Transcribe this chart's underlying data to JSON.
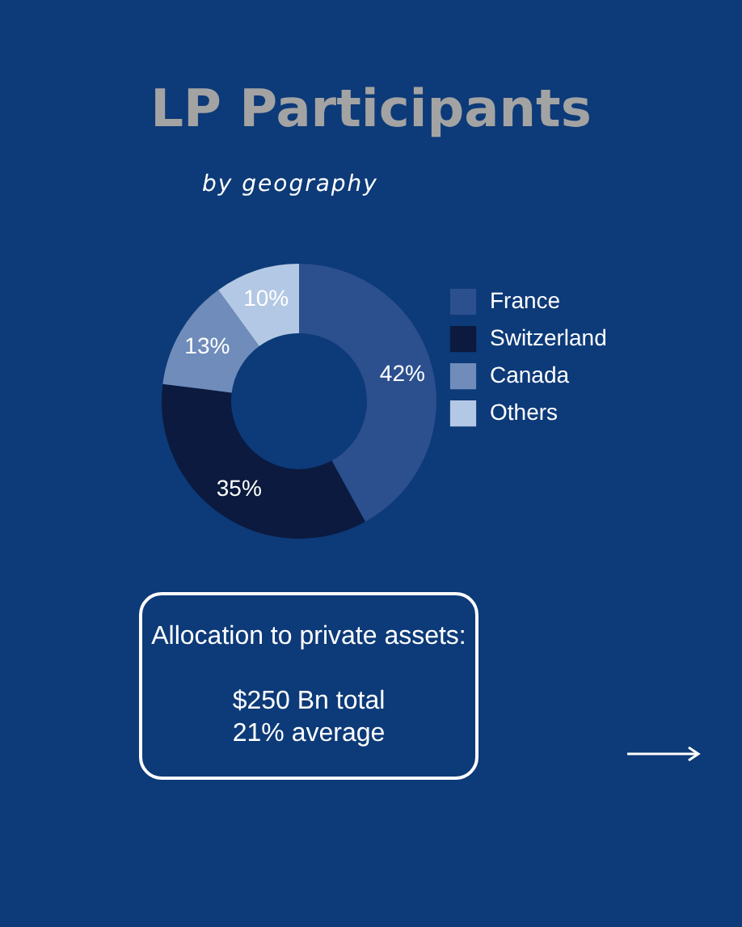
{
  "chart_data": {
    "type": "donut",
    "title": "LP Participants",
    "subtitle": "by geography",
    "categories": [
      "France",
      "Switzerland",
      "Canada",
      "Others"
    ],
    "values": [
      42,
      35,
      13,
      10
    ],
    "value_labels": [
      "42%",
      "35%",
      "13%",
      "10%"
    ],
    "colors": [
      "#2c4f8e",
      "#0b1a3e",
      "#6f8cba",
      "#b3c8e4"
    ],
    "legend": "right",
    "annotations": [
      "Allocation to private assets:",
      "$250 Bn total",
      "21% average"
    ]
  }
}
